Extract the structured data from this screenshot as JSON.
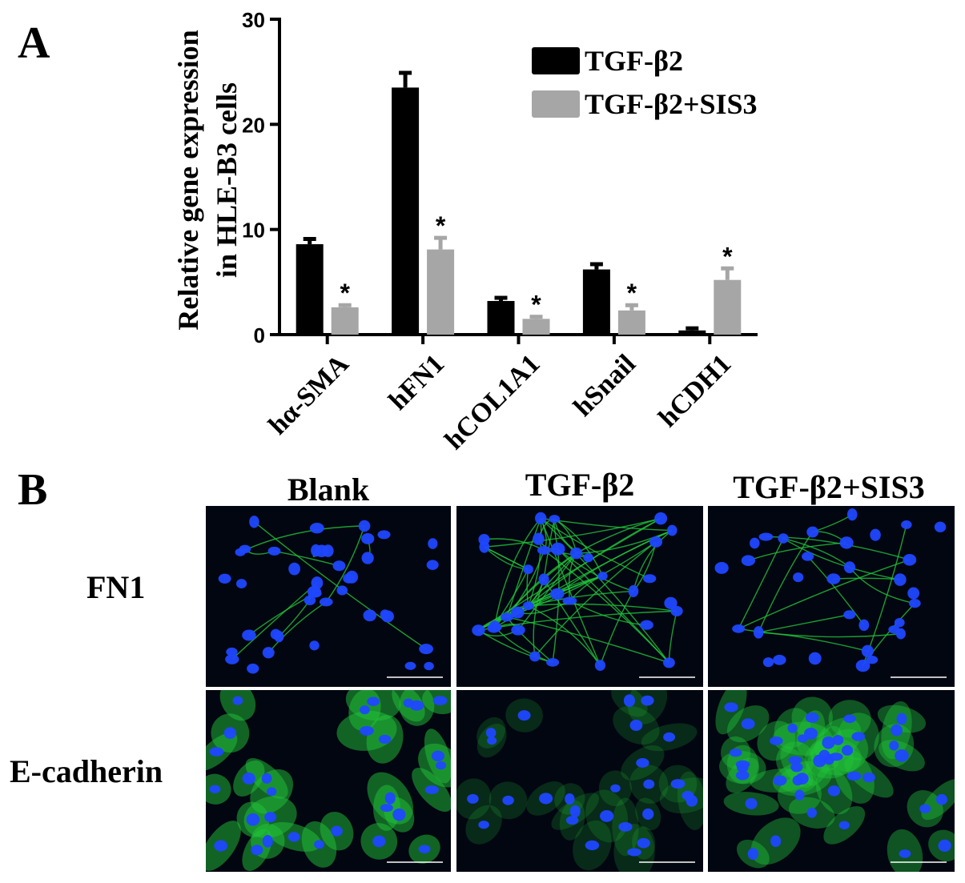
{
  "panels": {
    "a": "A",
    "b": "B"
  },
  "chart_data": {
    "type": "bar",
    "ylabel_line1": "Relative gene expression",
    "ylabel_line2": "in HLE-B3 cells",
    "ylim": [
      0,
      30
    ],
    "yticks": [
      0,
      10,
      20,
      30
    ],
    "categories": [
      "hα-SMA",
      "hFN1",
      "hCOL1A1",
      "hSnail",
      "hCDH1"
    ],
    "series": [
      {
        "name": "TGF-β2",
        "color": "#000000",
        "values": [
          8.6,
          23.5,
          3.2,
          6.2,
          0.4
        ],
        "errors": [
          0.5,
          1.4,
          0.3,
          0.5,
          0.2
        ],
        "sig": [
          "",
          "",
          "",
          "",
          ""
        ]
      },
      {
        "name": "TGF-β2+SIS3",
        "color": "#a6a6a6",
        "values": [
          2.6,
          8.1,
          1.5,
          2.3,
          5.2
        ],
        "errors": [
          0.2,
          1.1,
          0.2,
          0.5,
          1.1
        ],
        "sig": [
          "*",
          "*",
          "*",
          "*",
          "*"
        ]
      }
    ],
    "legend_position": "top-right",
    "grid": false
  },
  "panel_b": {
    "columns": [
      "Blank",
      "TGF-β2",
      "TGF-β2+SIS3"
    ],
    "rows": [
      "FN1",
      "E-cadherin"
    ],
    "nucleus_color": "#1f47ff",
    "stain_color": "#22c43a"
  }
}
